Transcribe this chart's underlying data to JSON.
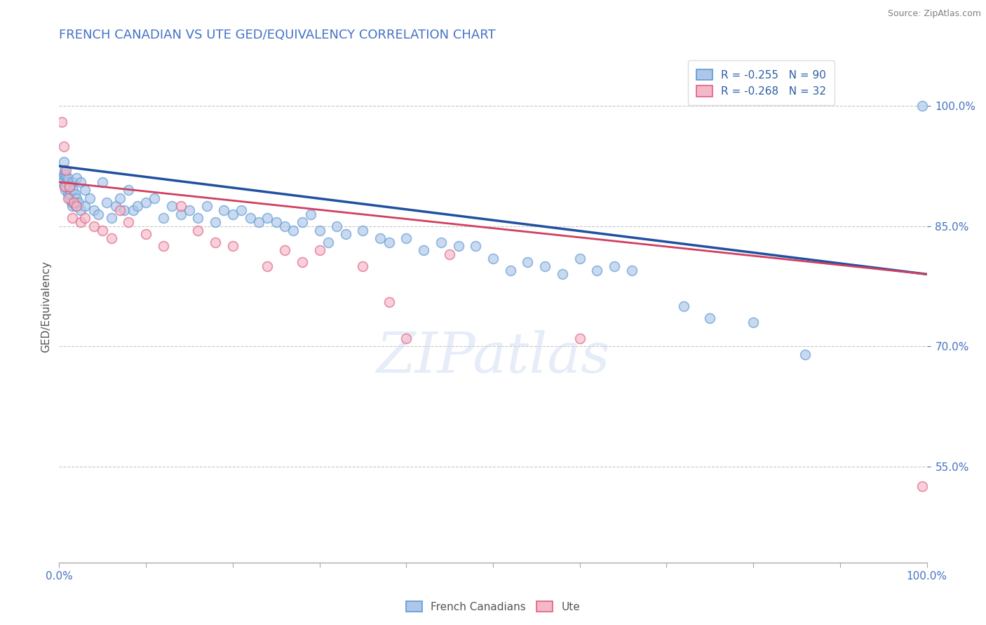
{
  "title": "FRENCH CANADIAN VS UTE GED/EQUIVALENCY CORRELATION CHART",
  "source_text": "Source: ZipAtlas.com",
  "ylabel": "GED/Equivalency",
  "xlim": [
    0.0,
    100.0
  ],
  "ylim": [
    43.0,
    107.0
  ],
  "x_tick_labels": [
    "0.0%",
    "",
    "",
    "",
    "",
    "",
    "",
    "",
    "",
    "",
    "100.0%"
  ],
  "x_tick_positions": [
    0.0,
    10.0,
    20.0,
    30.0,
    40.0,
    50.0,
    60.0,
    70.0,
    80.0,
    90.0,
    100.0
  ],
  "y_tick_labels": [
    "55.0%",
    "70.0%",
    "85.0%",
    "100.0%"
  ],
  "y_tick_values": [
    55.0,
    70.0,
    85.0,
    100.0
  ],
  "blue_color": "#aec6e8",
  "blue_edge_color": "#5b9bd5",
  "pink_color": "#f4b8c8",
  "pink_edge_color": "#e06080",
  "blue_line_color": "#2050a0",
  "pink_line_color": "#d04060",
  "legend_blue_label": "R = -0.255   N = 90",
  "legend_pink_label": "R = -0.268   N = 32",
  "bottom_legend_blue": "French Canadians",
  "bottom_legend_pink": "Ute",
  "watermark": "ZIPatlas",
  "title_color": "#4472c4",
  "source_color": "#808080",
  "background_color": "#ffffff",
  "grid_color": "#c8c8c8",
  "blue_y_intercept": 92.5,
  "blue_slope": -0.135,
  "pink_y_intercept": 90.5,
  "pink_slope": -0.115,
  "scatter_marker_size": 100,
  "scatter_alpha": 0.65,
  "blue_scatter_x": [
    0.3,
    0.4,
    0.5,
    0.5,
    0.6,
    0.6,
    0.7,
    0.7,
    0.8,
    0.8,
    0.9,
    1.0,
    1.0,
    1.1,
    1.2,
    1.2,
    1.3,
    1.3,
    1.4,
    1.5,
    1.5,
    1.6,
    1.7,
    1.8,
    1.9,
    2.0,
    2.0,
    2.2,
    2.5,
    2.5,
    3.0,
    3.0,
    3.5,
    4.0,
    4.5,
    5.0,
    5.5,
    6.0,
    6.5,
    7.0,
    7.5,
    8.0,
    8.5,
    9.0,
    10.0,
    11.0,
    12.0,
    13.0,
    14.0,
    15.0,
    16.0,
    17.0,
    18.0,
    19.0,
    20.0,
    21.0,
    22.0,
    23.0,
    24.0,
    25.0,
    26.0,
    27.0,
    28.0,
    29.0,
    30.0,
    31.0,
    32.0,
    33.0,
    35.0,
    37.0,
    38.0,
    40.0,
    42.0,
    44.0,
    46.0,
    48.0,
    50.0,
    52.0,
    54.0,
    56.0,
    58.0,
    60.0,
    62.0,
    64.0,
    66.0,
    72.0,
    75.0,
    80.0,
    86.0,
    99.5
  ],
  "blue_scatter_y": [
    91.0,
    90.5,
    93.0,
    91.5,
    92.0,
    90.0,
    91.5,
    89.5,
    91.0,
    90.0,
    90.5,
    91.0,
    89.0,
    90.0,
    89.5,
    88.5,
    90.0,
    89.0,
    88.0,
    90.5,
    87.5,
    89.5,
    88.0,
    89.0,
    87.5,
    91.0,
    88.5,
    88.0,
    90.5,
    87.0,
    89.5,
    87.5,
    88.5,
    87.0,
    86.5,
    90.5,
    88.0,
    86.0,
    87.5,
    88.5,
    87.0,
    89.5,
    87.0,
    87.5,
    88.0,
    88.5,
    86.0,
    87.5,
    86.5,
    87.0,
    86.0,
    87.5,
    85.5,
    87.0,
    86.5,
    87.0,
    86.0,
    85.5,
    86.0,
    85.5,
    85.0,
    84.5,
    85.5,
    86.5,
    84.5,
    83.0,
    85.0,
    84.0,
    84.5,
    83.5,
    83.0,
    83.5,
    82.0,
    83.0,
    82.5,
    82.5,
    81.0,
    79.5,
    80.5,
    80.0,
    79.0,
    81.0,
    79.5,
    80.0,
    79.5,
    75.0,
    73.5,
    73.0,
    69.0,
    100.0
  ],
  "pink_scatter_x": [
    0.3,
    0.5,
    0.6,
    0.8,
    1.0,
    1.2,
    1.5,
    1.7,
    2.0,
    2.5,
    3.0,
    4.0,
    5.0,
    6.0,
    7.0,
    8.0,
    10.0,
    12.0,
    14.0,
    16.0,
    18.0,
    20.0,
    24.0,
    26.0,
    28.0,
    30.0,
    35.0,
    38.0,
    40.0,
    45.0,
    60.0,
    99.5
  ],
  "pink_scatter_y": [
    98.0,
    95.0,
    90.0,
    92.0,
    88.5,
    90.0,
    86.0,
    88.0,
    87.5,
    85.5,
    86.0,
    85.0,
    84.5,
    83.5,
    87.0,
    85.5,
    84.0,
    82.5,
    87.5,
    84.5,
    83.0,
    82.5,
    80.0,
    82.0,
    80.5,
    82.0,
    80.0,
    75.5,
    71.0,
    81.5,
    71.0,
    52.5
  ]
}
